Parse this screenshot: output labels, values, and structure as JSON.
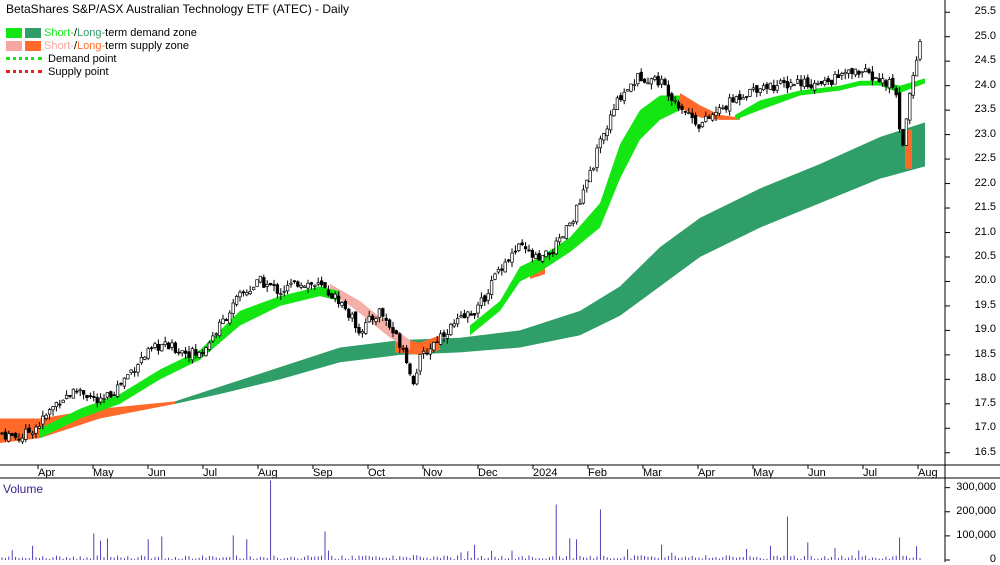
{
  "chart_data": {
    "type": "candlestick",
    "title": "BetaShares S&P/ASX Australian Technology ETF (ATEC) - Daily",
    "volume_label": "Volume",
    "legend": [
      {
        "text_a": "Short-",
        "text_b": " / ",
        "text_c": "Long-",
        "text_d": "term demand zone",
        "color_short": "#14e614",
        "color_long": "#2f9e68",
        "color_a": "#14e614",
        "color_c": "#2f9e68"
      },
      {
        "text_a": "Short-",
        "text_b": " / ",
        "text_c": "Long-",
        "text_d": "term supply zone",
        "color_short": "#f4a6a0",
        "color_long": "#ff6a2a",
        "color_a": "#f4a6a0",
        "color_c": "#ff6a2a"
      },
      {
        "text": "Demand point",
        "color": "#14e614"
      },
      {
        "text": "Supply point",
        "color": "#e82020"
      }
    ],
    "price_axis": {
      "ticks": [
        "25.5",
        "25.0",
        "24.5",
        "24.0",
        "23.5",
        "23.0",
        "22.5",
        "22.0",
        "21.5",
        "21.0",
        "20.5",
        "20.0",
        "19.5",
        "19.0",
        "18.5",
        "18.0",
        "17.5",
        "17.0",
        "16.5"
      ],
      "ylim": [
        16.25,
        25.75
      ]
    },
    "volume_axis": {
      "ticks": [
        "300,000",
        "200,000",
        "100,000",
        "0"
      ],
      "ylim": [
        0,
        340000
      ]
    },
    "x_axis": {
      "labels": [
        "Apr",
        "May",
        "Jun",
        "Jul",
        "Aug",
        "Sep",
        "Oct",
        "Nov",
        "Dec",
        "2024",
        "Feb",
        "Mar",
        "Apr",
        "May",
        "Jun",
        "Jul",
        "Aug"
      ]
    },
    "close_path": [
      [
        0,
        16.9
      ],
      [
        20,
        16.8
      ],
      [
        40,
        17.1
      ],
      [
        60,
        17.6
      ],
      [
        80,
        17.8
      ],
      [
        100,
        17.5
      ],
      [
        120,
        17.9
      ],
      [
        140,
        18.4
      ],
      [
        160,
        18.7
      ],
      [
        180,
        18.6
      ],
      [
        200,
        18.5
      ],
      [
        220,
        19.1
      ],
      [
        240,
        19.7
      ],
      [
        260,
        20.0
      ],
      [
        280,
        19.8
      ],
      [
        300,
        20.0
      ],
      [
        320,
        19.9
      ],
      [
        340,
        19.6
      ],
      [
        360,
        19.0
      ],
      [
        380,
        19.4
      ],
      [
        395,
        18.9
      ],
      [
        405,
        18.6
      ],
      [
        412,
        17.9
      ],
      [
        420,
        18.4
      ],
      [
        440,
        18.9
      ],
      [
        460,
        19.2
      ],
      [
        480,
        19.5
      ],
      [
        500,
        20.3
      ],
      [
        520,
        20.7
      ],
      [
        540,
        20.4
      ],
      [
        560,
        20.8
      ],
      [
        580,
        21.6
      ],
      [
        600,
        22.8
      ],
      [
        620,
        23.8
      ],
      [
        640,
        24.2
      ],
      [
        660,
        24.1
      ],
      [
        680,
        23.6
      ],
      [
        700,
        23.2
      ],
      [
        720,
        23.5
      ],
      [
        740,
        23.8
      ],
      [
        760,
        24.0
      ],
      [
        780,
        24.0
      ],
      [
        800,
        24.1
      ],
      [
        820,
        24.0
      ],
      [
        840,
        24.2
      ],
      [
        860,
        24.3
      ],
      [
        880,
        24.1
      ],
      [
        895,
        24.0
      ],
      [
        902,
        22.7
      ],
      [
        908,
        23.6
      ],
      [
        915,
        24.4
      ],
      [
        922,
        25.1
      ]
    ],
    "short_demand_zone": {
      "top": [
        [
          40,
          17.0
        ],
        [
          80,
          17.4
        ],
        [
          120,
          17.7
        ],
        [
          160,
          18.2
        ],
        [
          200,
          18.6
        ],
        [
          240,
          19.4
        ],
        [
          280,
          19.7
        ],
        [
          320,
          19.9
        ],
        [
          340,
          19.8
        ]
      ],
      "bottom": [
        [
          40,
          16.8
        ],
        [
          80,
          17.2
        ],
        [
          120,
          17.5
        ],
        [
          160,
          18.0
        ],
        [
          200,
          18.4
        ],
        [
          240,
          19.1
        ],
        [
          280,
          19.5
        ],
        [
          320,
          19.7
        ],
        [
          340,
          19.6
        ]
      ]
    },
    "short_demand_zone_2": {
      "top": [
        [
          470,
          19.1
        ],
        [
          500,
          19.6
        ],
        [
          520,
          20.3
        ],
        [
          540,
          20.5
        ],
        [
          570,
          20.9
        ],
        [
          600,
          21.6
        ],
        [
          620,
          22.8
        ],
        [
          640,
          23.5
        ],
        [
          660,
          23.8
        ],
        [
          680,
          23.8
        ]
      ],
      "bottom": [
        [
          470,
          18.9
        ],
        [
          500,
          19.4
        ],
        [
          520,
          20.0
        ],
        [
          540,
          20.2
        ],
        [
          570,
          20.6
        ],
        [
          600,
          21.1
        ],
        [
          620,
          22.1
        ],
        [
          640,
          22.9
        ],
        [
          660,
          23.3
        ],
        [
          680,
          23.5
        ]
      ]
    },
    "short_demand_zone_3": {
      "top": [
        [
          735,
          23.4
        ],
        [
          760,
          23.7
        ],
        [
          800,
          23.9
        ],
        [
          840,
          24.0
        ],
        [
          860,
          24.1
        ],
        [
          880,
          24.1
        ],
        [
          900,
          24.0
        ],
        [
          925,
          24.15
        ]
      ],
      "bottom": [
        [
          735,
          23.3
        ],
        [
          760,
          23.5
        ],
        [
          800,
          23.8
        ],
        [
          840,
          23.9
        ],
        [
          860,
          24.0
        ],
        [
          880,
          24.0
        ],
        [
          900,
          23.85
        ],
        [
          925,
          24.05
        ]
      ]
    },
    "long_demand_zone": {
      "top": [
        [
          175,
          17.55
        ],
        [
          220,
          17.85
        ],
        [
          280,
          18.25
        ],
        [
          340,
          18.65
        ],
        [
          400,
          18.8
        ],
        [
          460,
          18.85
        ],
        [
          520,
          19.0
        ],
        [
          580,
          19.4
        ],
        [
          620,
          19.9
        ],
        [
          660,
          20.7
        ],
        [
          700,
          21.3
        ],
        [
          760,
          21.9
        ],
        [
          820,
          22.4
        ],
        [
          880,
          22.95
        ],
        [
          925,
          23.25
        ]
      ],
      "bottom": [
        [
          175,
          17.5
        ],
        [
          220,
          17.7
        ],
        [
          280,
          18.0
        ],
        [
          340,
          18.35
        ],
        [
          400,
          18.5
        ],
        [
          460,
          18.55
        ],
        [
          520,
          18.65
        ],
        [
          580,
          18.9
        ],
        [
          620,
          19.3
        ],
        [
          660,
          19.9
        ],
        [
          700,
          20.5
        ],
        [
          760,
          21.1
        ],
        [
          820,
          21.6
        ],
        [
          880,
          22.1
        ],
        [
          925,
          22.35
        ]
      ]
    },
    "long_supply_zone": [
      {
        "top": [
          [
            0,
            17.2
          ],
          [
            40,
            17.2
          ],
          [
            100,
            17.4
          ],
          [
            175,
            17.55
          ]
        ],
        "bottom": [
          [
            0,
            16.7
          ],
          [
            40,
            16.8
          ],
          [
            100,
            17.2
          ],
          [
            175,
            17.5
          ]
        ]
      },
      {
        "top": [
          [
            395,
            18.85
          ],
          [
            420,
            18.75
          ],
          [
            440,
            18.9
          ]
        ],
        "bottom": [
          [
            395,
            18.55
          ],
          [
            420,
            18.5
          ],
          [
            440,
            18.6
          ]
        ]
      },
      {
        "top": [
          [
            530,
            20.3
          ],
          [
            545,
            20.4
          ]
        ],
        "bottom": [
          [
            530,
            20.05
          ],
          [
            545,
            20.15
          ]
        ]
      },
      {
        "top": [
          [
            680,
            23.85
          ],
          [
            700,
            23.6
          ],
          [
            720,
            23.4
          ],
          [
            740,
            23.35
          ]
        ],
        "bottom": [
          [
            680,
            23.55
          ],
          [
            700,
            23.35
          ],
          [
            720,
            23.3
          ],
          [
            740,
            23.3
          ]
        ]
      },
      {
        "top": [
          [
            905,
            23.1
          ],
          [
            912,
            23.1
          ]
        ],
        "bottom": [
          [
            905,
            22.3
          ],
          [
            912,
            22.3
          ]
        ]
      }
    ],
    "short_supply_zone": {
      "top": [
        [
          330,
          19.95
        ],
        [
          360,
          19.6
        ],
        [
          390,
          19.1
        ],
        [
          410,
          18.8
        ]
      ],
      "bottom": [
        [
          330,
          19.8
        ],
        [
          360,
          19.35
        ],
        [
          390,
          18.85
        ],
        [
          410,
          18.6
        ]
      ]
    }
  }
}
